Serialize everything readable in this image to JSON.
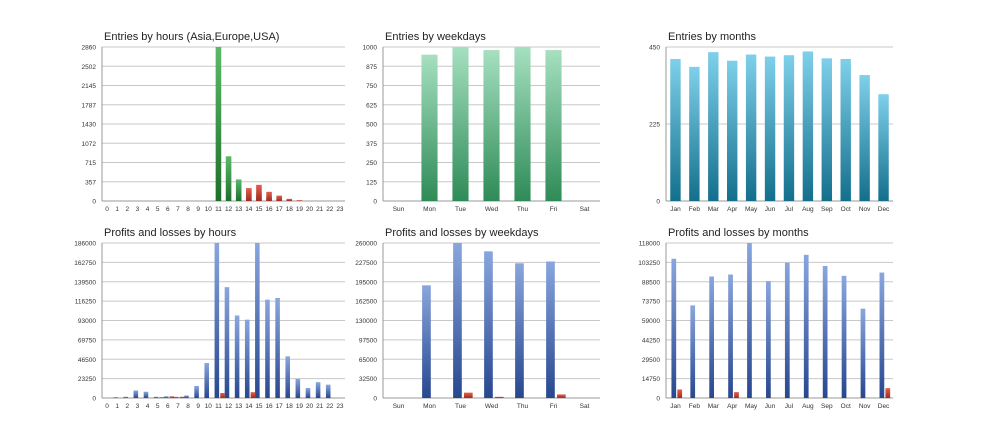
{
  "colors": {
    "entries_hours_pos": "#2e8b3e",
    "entries_hours_neg": "#c0392b",
    "entries_weekdays": "#5cba87",
    "entries_months": "#2a9cc0",
    "profit": "#3d63b0",
    "loss": "#c0392b",
    "grid": "#c8c8c8"
  },
  "chart_data": [
    {
      "type": "bar",
      "title": "Entries by hours (Asia,Europe,USA)",
      "categories": [
        "0",
        "1",
        "2",
        "3",
        "4",
        "5",
        "6",
        "7",
        "8",
        "9",
        "10",
        "11",
        "12",
        "13",
        "14",
        "15",
        "16",
        "17",
        "18",
        "19",
        "20",
        "21",
        "22",
        "23"
      ],
      "yticks": [
        "0",
        "357",
        "715",
        "1072",
        "1430",
        "1787",
        "2145",
        "2502",
        "2860"
      ],
      "ylim": [
        0,
        2860
      ],
      "grid": true,
      "series": [
        {
          "values": [
            0,
            0,
            0,
            0,
            0,
            0,
            0,
            0,
            0,
            0,
            0,
            2860,
            830,
            400,
            200,
            150,
            80,
            40,
            10,
            0,
            0,
            0,
            0,
            0
          ]
        },
        {
          "values": [
            0,
            0,
            0,
            0,
            0,
            0,
            0,
            0,
            0,
            0,
            0,
            0,
            0,
            0,
            240,
            300,
            170,
            100,
            40,
            15,
            0,
            0,
            0,
            0
          ]
        }
      ]
    },
    {
      "type": "bar",
      "title": "Entries by weekdays",
      "categories": [
        "Sun",
        "Mon",
        "Tue",
        "Wed",
        "Thu",
        "Fri",
        "Sat"
      ],
      "yticks": [
        "0",
        "125",
        "250",
        "375",
        "500",
        "625",
        "750",
        "875",
        "1000"
      ],
      "ylim": [
        0,
        1000
      ],
      "grid": true,
      "values": [
        0,
        950,
        1000,
        980,
        1000,
        980,
        0
      ]
    },
    {
      "type": "bar",
      "title": "Entries by months",
      "categories": [
        "Jan",
        "Feb",
        "Mar",
        "Apr",
        "May",
        "Jun",
        "Jul",
        "Aug",
        "Sep",
        "Oct",
        "Nov",
        "Dec"
      ],
      "yticks": [
        "0",
        "225",
        "450"
      ],
      "ylim": [
        0,
        450
      ],
      "grid": true,
      "values": [
        415,
        392,
        435,
        410,
        428,
        422,
        426,
        437,
        417,
        415,
        368,
        312
      ]
    },
    {
      "type": "bar",
      "title": "Profits and losses by hours",
      "categories": [
        "0",
        "1",
        "2",
        "3",
        "4",
        "5",
        "6",
        "7",
        "8",
        "9",
        "10",
        "11",
        "12",
        "13",
        "14",
        "15",
        "16",
        "17",
        "18",
        "19",
        "20",
        "21",
        "22",
        "23"
      ],
      "yticks": [
        "0",
        "23250",
        "46500",
        "69750",
        "93000",
        "116250",
        "139500",
        "162750",
        "186000"
      ],
      "ylim": [
        0,
        186000
      ],
      "grid": true,
      "series": [
        {
          "values": [
            0,
            1000,
            1500,
            9000,
            7500,
            1500,
            2000,
            1500,
            3000,
            14500,
            42000,
            186000,
            133000,
            99000,
            94000,
            186000,
            118000,
            120000,
            50000,
            23000,
            12000,
            19000,
            16000,
            0
          ]
        },
        {
          "values": [
            0,
            0,
            0,
            0,
            0,
            1000,
            2000,
            1500,
            0,
            0,
            0,
            6000,
            0,
            0,
            7000,
            0,
            0,
            0,
            0,
            0,
            0,
            0,
            0,
            0
          ]
        }
      ]
    },
    {
      "type": "bar",
      "title": "Profits and losses by weekdays",
      "categories": [
        "Sun",
        "Mon",
        "Tue",
        "Wed",
        "Thu",
        "Fri",
        "Sat"
      ],
      "yticks": [
        "0",
        "32500",
        "65000",
        "97500",
        "130000",
        "162500",
        "195000",
        "227500",
        "260000"
      ],
      "ylim": [
        0,
        260000
      ],
      "grid": true,
      "series": [
        {
          "values": [
            0,
            189000,
            260000,
            246000,
            226000,
            229000,
            0
          ]
        },
        {
          "values": [
            0,
            0,
            9000,
            2000,
            0,
            6000,
            0
          ]
        }
      ]
    },
    {
      "type": "bar",
      "title": "Profits and losses by months",
      "categories": [
        "Jan",
        "Feb",
        "Mar",
        "Apr",
        "May",
        "Jun",
        "Jul",
        "Aug",
        "Sep",
        "Oct",
        "Nov",
        "Dec"
      ],
      "yticks": [
        "0",
        "14750",
        "29500",
        "44250",
        "59000",
        "73750",
        "88500",
        "103250",
        "118000"
      ],
      "ylim": [
        0,
        118000
      ],
      "grid": true,
      "series": [
        {
          "values": [
            106000,
            70500,
            92500,
            94000,
            118000,
            89000,
            103000,
            109000,
            100500,
            93000,
            68000,
            95500
          ]
        },
        {
          "values": [
            6500,
            0,
            0,
            4500,
            0,
            0,
            0,
            0,
            0,
            0,
            0,
            7500
          ]
        }
      ]
    }
  ]
}
